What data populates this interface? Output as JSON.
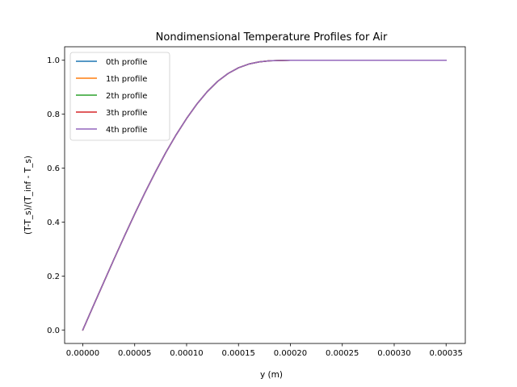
{
  "chart_data": {
    "type": "line",
    "title": "Nondimensional Temperature Profiles for Air",
    "xlabel": "y (m)",
    "ylabel": "(T-T_s)/(T_inf - T_s)",
    "xlim": [
      -1.75e-05,
      0.0003685
    ],
    "ylim": [
      -0.05,
      1.05
    ],
    "xticks": [
      0,
      5e-05,
      0.0001,
      0.00015,
      0.0002,
      0.00025,
      0.0003,
      0.00035
    ],
    "xtick_labels": [
      "0.00000",
      "0.00005",
      "0.00010",
      "0.00015",
      "0.00020",
      "0.00025",
      "0.00030",
      "0.00035"
    ],
    "yticks": [
      0,
      0.2,
      0.4,
      0.6,
      0.8,
      1.0
    ],
    "ytick_labels": [
      "0.0",
      "0.2",
      "0.4",
      "0.6",
      "0.8",
      "1.0"
    ],
    "grid": false,
    "legend_position": "upper-left",
    "x": [
      0,
      1e-05,
      2e-05,
      3e-05,
      4e-05,
      5e-05,
      6e-05,
      7e-05,
      8e-05,
      9e-05,
      0.0001,
      0.00011,
      0.00012,
      0.00013,
      0.00014,
      0.00015,
      0.00016,
      0.00017,
      0.00018,
      0.00019,
      0.0002,
      0.00021,
      0.00022,
      0.00025,
      0.0003,
      0.00035
    ],
    "series": [
      {
        "name": "0th profile",
        "color": "#1f77b4",
        "values": [
          0,
          0.088,
          0.175,
          0.262,
          0.347,
          0.43,
          0.51,
          0.586,
          0.658,
          0.724,
          0.784,
          0.838,
          0.884,
          0.922,
          0.951,
          0.972,
          0.986,
          0.994,
          0.998,
          0.999,
          1.0,
          1.0,
          1.0,
          1.0,
          1.0,
          1.0
        ]
      },
      {
        "name": "1th profile",
        "color": "#ff7f0e",
        "values": [
          0,
          0.088,
          0.175,
          0.262,
          0.347,
          0.43,
          0.51,
          0.586,
          0.658,
          0.724,
          0.784,
          0.838,
          0.884,
          0.922,
          0.951,
          0.972,
          0.986,
          0.994,
          0.998,
          0.999,
          1.0,
          1.0,
          1.0,
          1.0,
          1.0,
          1.0
        ]
      },
      {
        "name": "2th profile",
        "color": "#2ca02c",
        "values": [
          0,
          0.088,
          0.175,
          0.262,
          0.347,
          0.43,
          0.51,
          0.586,
          0.658,
          0.724,
          0.784,
          0.838,
          0.884,
          0.922,
          0.951,
          0.972,
          0.986,
          0.994,
          0.998,
          0.999,
          1.0,
          1.0,
          1.0,
          1.0,
          1.0,
          1.0
        ]
      },
      {
        "name": "3th profile",
        "color": "#d62728",
        "values": [
          0,
          0.088,
          0.175,
          0.262,
          0.347,
          0.43,
          0.51,
          0.586,
          0.658,
          0.724,
          0.784,
          0.838,
          0.884,
          0.922,
          0.951,
          0.972,
          0.986,
          0.994,
          0.998,
          0.999,
          1.0,
          1.0,
          1.0,
          1.0,
          1.0,
          1.0
        ]
      },
      {
        "name": "4th profile",
        "color": "#9467bd",
        "values": [
          0,
          0.088,
          0.175,
          0.262,
          0.347,
          0.43,
          0.51,
          0.586,
          0.658,
          0.724,
          0.784,
          0.838,
          0.884,
          0.922,
          0.951,
          0.972,
          0.986,
          0.994,
          0.998,
          0.999,
          1.0,
          1.0,
          1.0,
          1.0,
          1.0,
          1.0
        ]
      }
    ]
  }
}
